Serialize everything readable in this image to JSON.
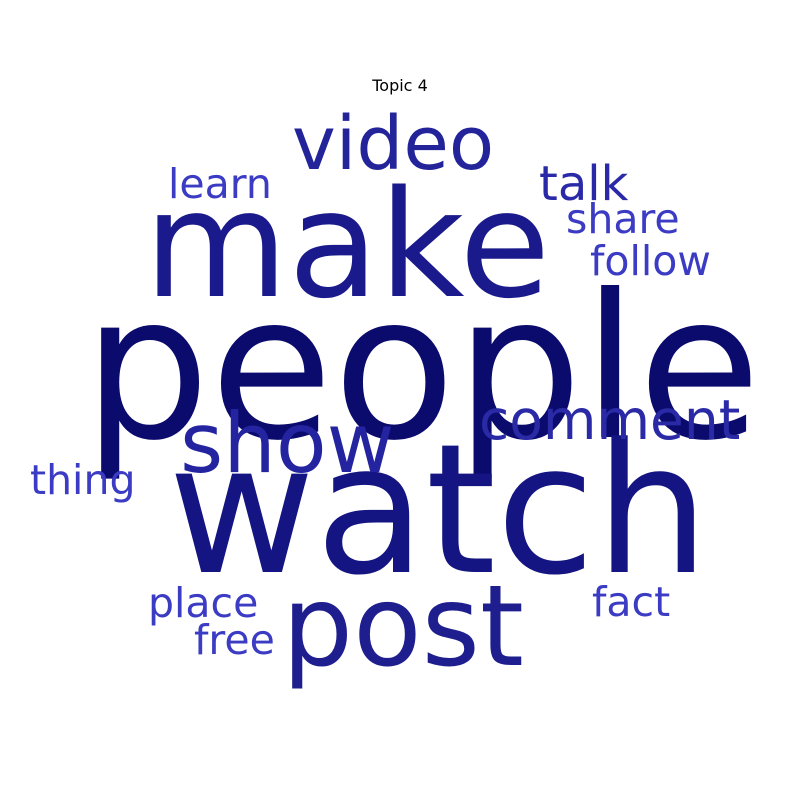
{
  "title": "Topic 4",
  "words": {
    "people": {
      "text": "people",
      "color": "#0b0b6e"
    },
    "watch": {
      "text": "watch",
      "color": "#141482"
    },
    "make": {
      "text": "make",
      "color": "#1a1a8c"
    },
    "post": {
      "text": "post",
      "color": "#1e1e8f"
    },
    "video": {
      "text": "video",
      "color": "#23239a"
    },
    "show": {
      "text": "show",
      "color": "#2424a0"
    },
    "comment": {
      "text": "comment",
      "color": "#2a2aa6"
    },
    "talk": {
      "text": "talk",
      "color": "#2a2aa8"
    },
    "learn": {
      "text": "learn",
      "color": "#3b3bc4"
    },
    "share": {
      "text": "share",
      "color": "#3b3bc4"
    },
    "follow": {
      "text": "follow",
      "color": "#3b3bc4"
    },
    "thing": {
      "text": "thing",
      "color": "#3b3bc4"
    },
    "place": {
      "text": "place",
      "color": "#3b3bc4"
    },
    "fact": {
      "text": "fact",
      "color": "#3b3bc4"
    },
    "free": {
      "text": "free",
      "color": "#3b3bc4"
    }
  }
}
